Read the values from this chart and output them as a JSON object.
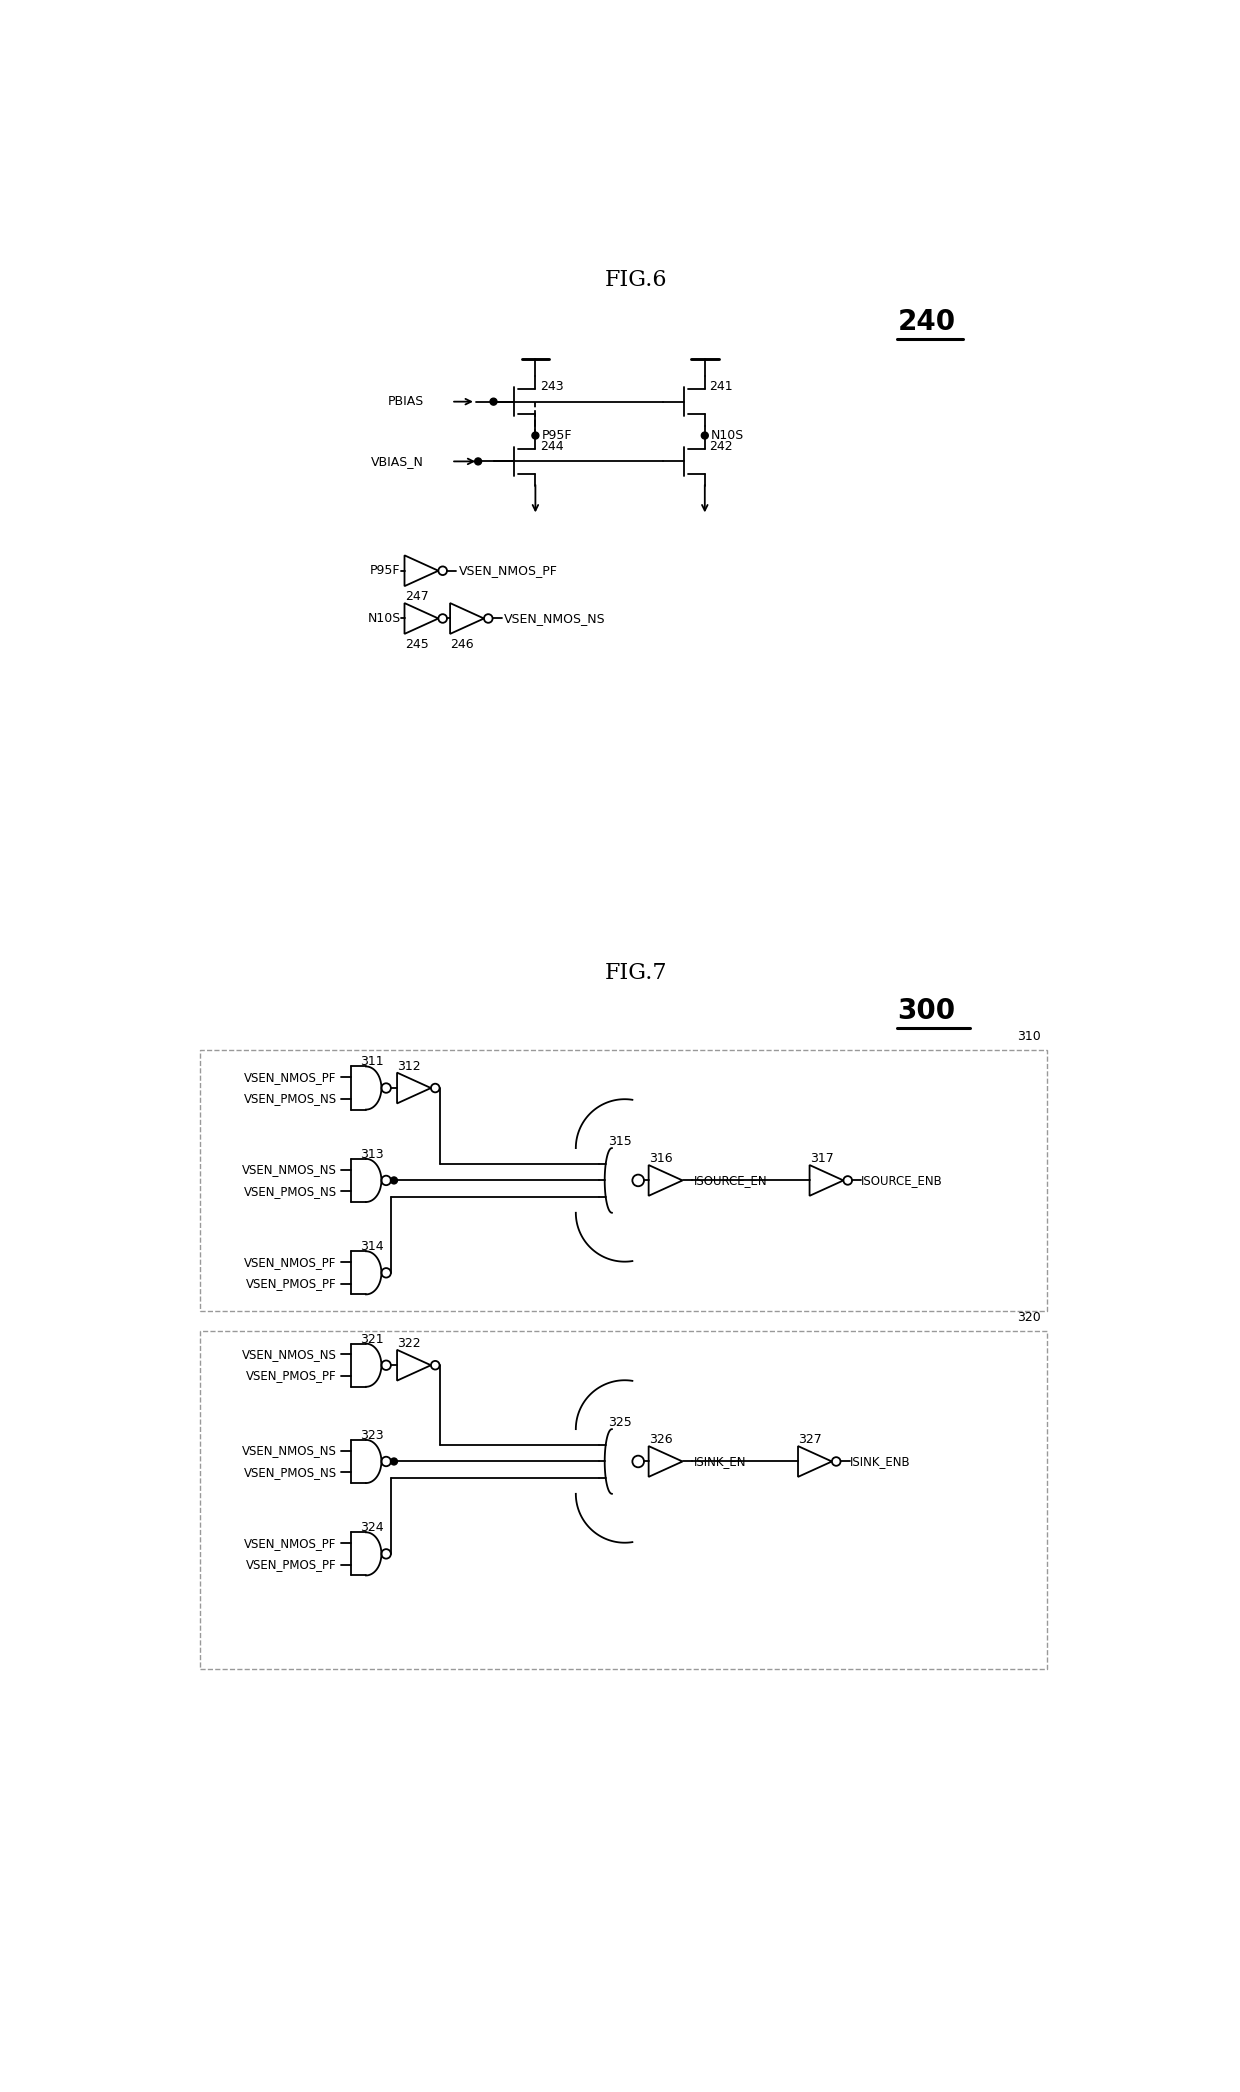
{
  "fig6_title": "FIG.6",
  "fig7_title": "FIG.7",
  "label_240": "240",
  "label_300": "300",
  "bg_color": "#ffffff",
  "line_color": "#000000",
  "text_color": "#000000",
  "font_size_title": 16,
  "font_size_large_ref": 20,
  "lw": 1.3
}
